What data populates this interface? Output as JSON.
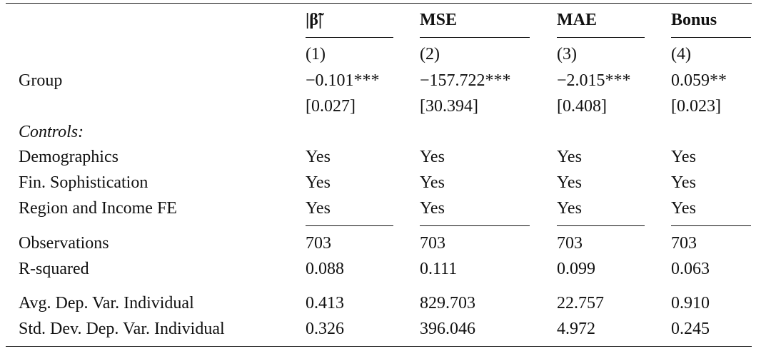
{
  "table": {
    "columns": [
      {
        "header": "|β̃|",
        "number": "(1)"
      },
      {
        "header": "MSE",
        "number": "(2)"
      },
      {
        "header": "MAE",
        "number": "(3)"
      },
      {
        "header": "Bonus",
        "number": "(4)"
      }
    ],
    "coefficient": {
      "label": "Group",
      "values": [
        "−0.101***",
        "−157.722***",
        "−2.015***",
        "0.059**"
      ],
      "std_errors": [
        "[0.027]",
        "[30.394]",
        "[0.408]",
        "[0.023]"
      ]
    },
    "controls_heading": "Controls:",
    "controls": [
      {
        "label": "Demographics",
        "values": [
          "Yes",
          "Yes",
          "Yes",
          "Yes"
        ]
      },
      {
        "label": "Fin. Sophistication",
        "values": [
          "Yes",
          "Yes",
          "Yes",
          "Yes"
        ]
      },
      {
        "label": "Region and Income FE",
        "values": [
          "Yes",
          "Yes",
          "Yes",
          "Yes"
        ]
      }
    ],
    "stats": [
      {
        "label": "Observations",
        "values": [
          "703",
          "703",
          "703",
          "703"
        ]
      },
      {
        "label": "R-squared",
        "values": [
          "0.088",
          "0.111",
          "0.099",
          "0.063"
        ]
      }
    ],
    "dep_var_stats": [
      {
        "label": "Avg. Dep. Var. Individual",
        "values": [
          "0.413",
          "829.703",
          "22.757",
          "0.910"
        ]
      },
      {
        "label": "Std. Dev. Dep. Var. Individual",
        "values": [
          "0.326",
          "396.046",
          "4.972",
          "0.245"
        ]
      }
    ]
  }
}
